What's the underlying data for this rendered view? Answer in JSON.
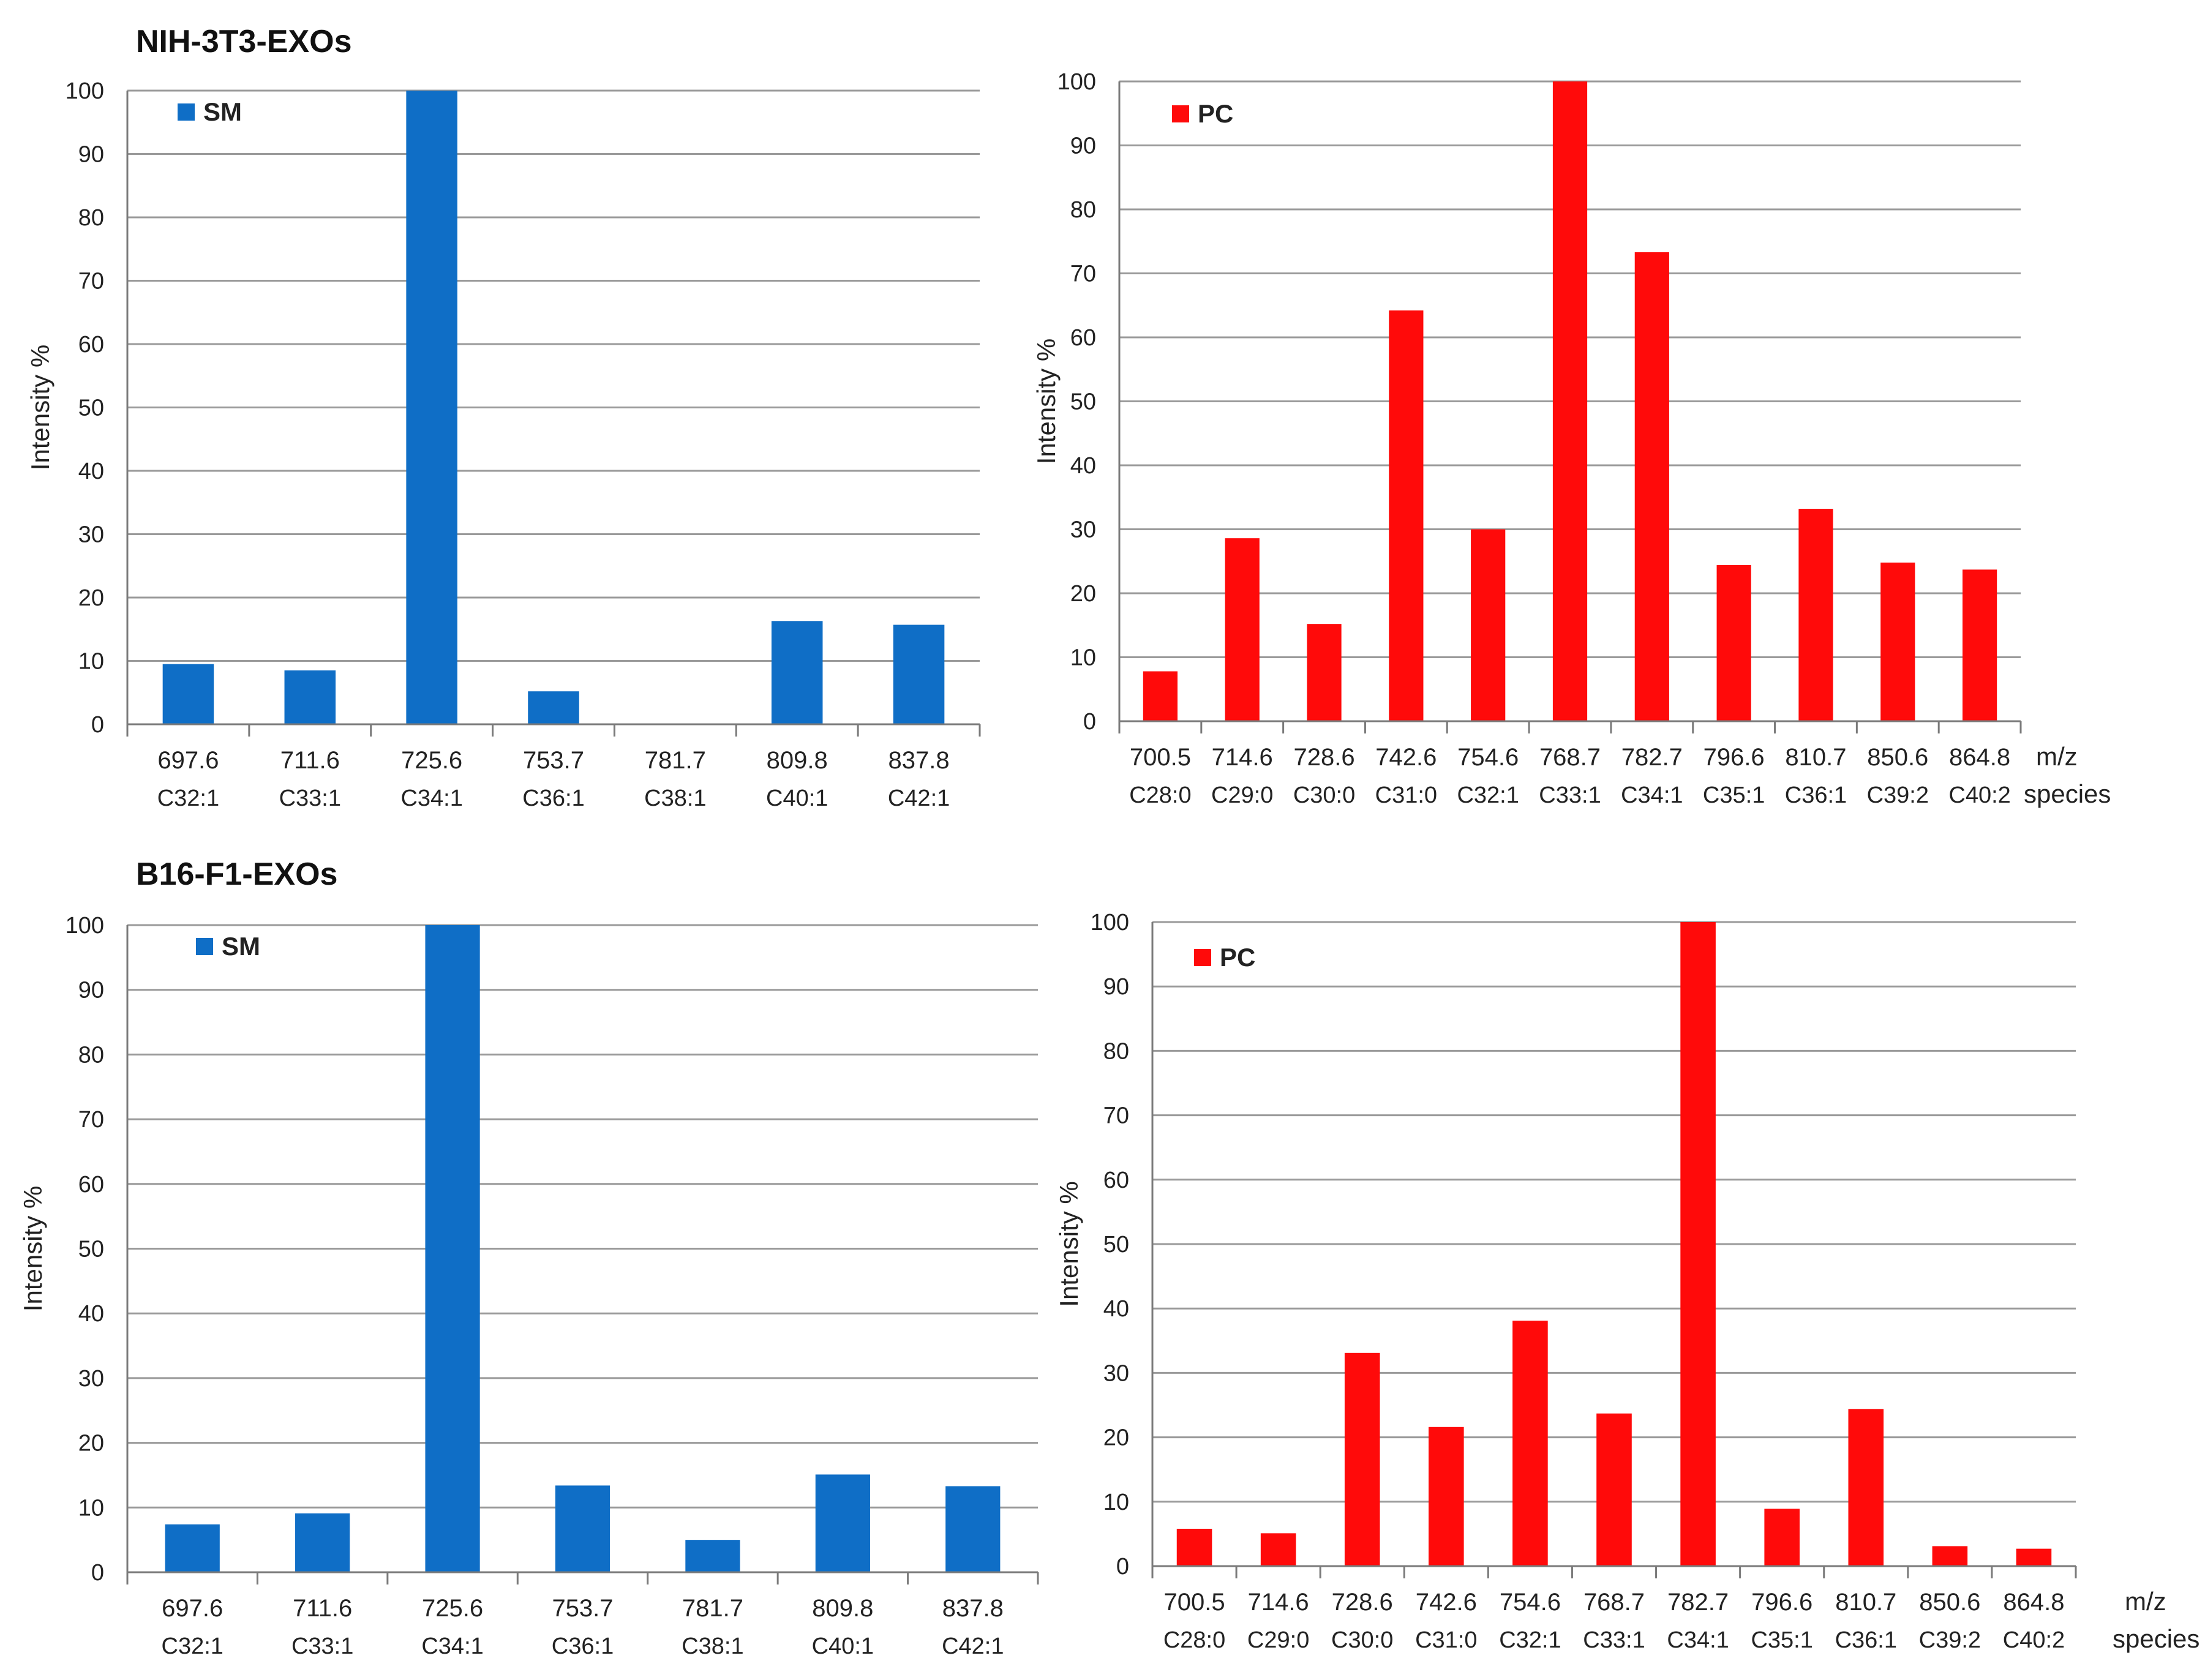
{
  "sections": [
    {
      "title": "NIH-3T3-EXOs"
    },
    {
      "title": "B16-F1-EXOs"
    }
  ],
  "colors": {
    "sm": "#0F6EC6",
    "pc": "#FF0A0A",
    "grid": "#9a9a9a",
    "axis": "#7a7a7a"
  },
  "chart_data": [
    {
      "type": "bar",
      "section": "NIH-3T3-EXOs",
      "legend": "SM",
      "ylabel": "Intensity %",
      "ylim": [
        0,
        100
      ],
      "yticks": [
        0,
        10,
        20,
        30,
        40,
        50,
        60,
        70,
        80,
        90,
        100
      ],
      "categories": [
        "697.6",
        "711.6",
        "725.6",
        "753.7",
        "781.7",
        "809.8",
        "837.8"
      ],
      "species": [
        "C32:1",
        "C33:1",
        "C34:1",
        "C36:1",
        "C38:1",
        "C40:1",
        "C42:1"
      ],
      "values": [
        9.5,
        8.5,
        100,
        5.2,
        0,
        16.3,
        15.7
      ],
      "axis_suffix": null
    },
    {
      "type": "bar",
      "section": "NIH-3T3-EXOs",
      "legend": "PC",
      "ylabel": "Intensity %",
      "ylim": [
        0,
        100
      ],
      "yticks": [
        0,
        10,
        20,
        30,
        40,
        50,
        60,
        70,
        80,
        90,
        100
      ],
      "categories": [
        "700.5",
        "714.6",
        "728.6",
        "742.6",
        "754.6",
        "768.7",
        "782.7",
        "796.6",
        "810.7",
        "850.6",
        "864.8"
      ],
      "species": [
        "C28:0",
        "C29:0",
        "C30:0",
        "C31:0",
        "C32:1",
        "C33:1",
        "C34:1",
        "C35:1",
        "C36:1",
        "C39:2",
        "C40:2"
      ],
      "values": [
        7.8,
        28.6,
        15.2,
        64.2,
        30,
        100,
        73.3,
        24.4,
        33.2,
        24.8,
        23.7
      ],
      "axis_suffix": {
        "line1": "m/z",
        "line2": "species"
      }
    },
    {
      "type": "bar",
      "section": "B16-F1-EXOs",
      "legend": "SM",
      "ylabel": "Intensity %",
      "ylim": [
        0,
        100
      ],
      "yticks": [
        0,
        10,
        20,
        30,
        40,
        50,
        60,
        70,
        80,
        90,
        100
      ],
      "categories": [
        "697.6",
        "711.6",
        "725.6",
        "753.7",
        "781.7",
        "809.8",
        "837.8"
      ],
      "species": [
        "C32:1",
        "C33:1",
        "C34:1",
        "C36:1",
        "C38:1",
        "C40:1",
        "C42:1"
      ],
      "values": [
        7.4,
        9.1,
        100,
        13.4,
        5,
        15.1,
        13.3
      ],
      "axis_suffix": null
    },
    {
      "type": "bar",
      "section": "B16-F1-EXOs",
      "legend": "PC",
      "ylabel": "Intensity %",
      "ylim": [
        0,
        100
      ],
      "yticks": [
        0,
        10,
        20,
        30,
        40,
        50,
        60,
        70,
        80,
        90,
        100
      ],
      "categories": [
        "700.5",
        "714.6",
        "728.6",
        "742.6",
        "754.6",
        "768.7",
        "782.7",
        "796.6",
        "810.7",
        "850.6",
        "864.8"
      ],
      "species": [
        "C28:0",
        "C29:0",
        "C30:0",
        "C31:0",
        "C32:1",
        "C33:1",
        "C34:1",
        "C35:1",
        "C36:1",
        "C39:2",
        "C40:2"
      ],
      "values": [
        5.8,
        5.1,
        33.1,
        21.6,
        38.1,
        23.7,
        100,
        8.9,
        24.4,
        3.1,
        2.7
      ],
      "axis_suffix": {
        "line1": "m/z",
        "line2": "species"
      }
    }
  ]
}
